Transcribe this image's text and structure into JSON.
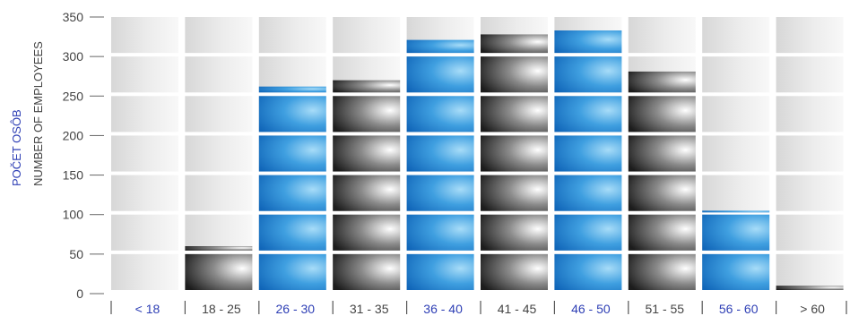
{
  "chart_data": {
    "type": "bar",
    "ylabel": "POČET OSÔB",
    "ylabel_secondary": "NUMBER OF EMPLOYEES",
    "ylim": [
      0,
      350
    ],
    "yticks": [
      0,
      50,
      100,
      150,
      200,
      250,
      300,
      350
    ],
    "categories": [
      "< 18",
      "18 - 25",
      "26 - 30",
      "31 - 35",
      "36 - 40",
      "41 - 45",
      "46 - 50",
      "51 - 55",
      "56 - 60",
      "> 60"
    ],
    "values": [
      0,
      60,
      262,
      270,
      321,
      328,
      333,
      281,
      105,
      10
    ],
    "bar_colors": [
      "blue",
      "black",
      "blue",
      "black",
      "blue",
      "black",
      "blue",
      "black",
      "blue",
      "black"
    ],
    "grid": true,
    "legend": "none"
  },
  "colors": {
    "blue": "#1a7fd1",
    "blue_light": "#9ed6f7",
    "black": "#2a2a2a",
    "grey_light": "#f7f7f7",
    "grey_dark": "#d5d5d5",
    "label_blue": "#2e3fb5",
    "label_dark": "#444444"
  }
}
